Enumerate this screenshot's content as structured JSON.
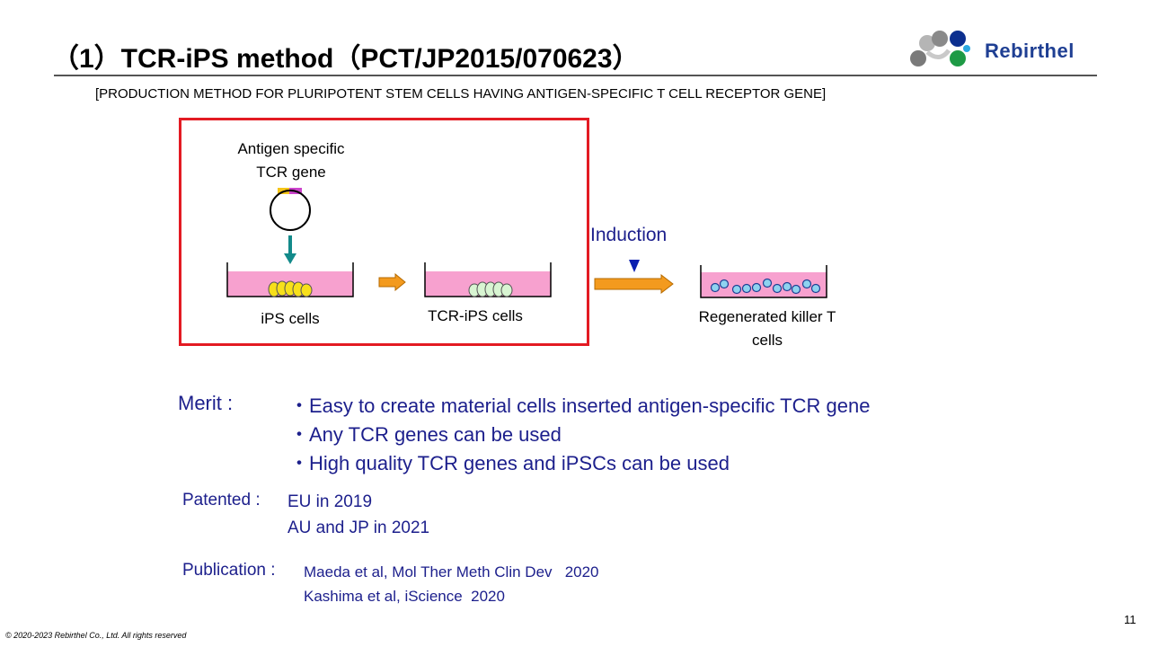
{
  "header": {
    "title": "（1）TCR-iPS method（PCT/JP2015/070623）",
    "subtitle": "[PRODUCTION METHOD FOR PLURIPOTENT STEM CELLS HAVING ANTIGEN-SPECIFIC T CELL RECEPTOR GENE]",
    "brand_name": "Rebirthel"
  },
  "diagram": {
    "antigen_label_line1": "Antigen specific",
    "antigen_label_line2": "TCR gene",
    "ips_label": "iPS cells",
    "tcr_ips_label": "TCR-iPS cells",
    "induction_label": "Induction",
    "killer_label_line1": "Regenerated killer T",
    "killer_label_line2": "cells"
  },
  "merit": {
    "label": "Merit :",
    "items": [
      "・Easy to create material cells inserted antigen-specific TCR gene",
      "・Any TCR genes can be used",
      "・High quality TCR genes and iPSCs can be used"
    ]
  },
  "patented": {
    "label": "Patented :",
    "items": [
      "EU in 2019",
      "AU and JP in 2021"
    ]
  },
  "publication": {
    "label": "Publication :",
    "items": [
      "Maeda et al, Mol Ther Meth Clin Dev   2020",
      "Kashima et al, iScience  2020"
    ]
  },
  "footer": {
    "page_number": "11",
    "copyright": "© 2020-2023 Rebirthel Co., Ltd. All rights reserved"
  },
  "colors": {
    "text_blue": "#1c1f8c",
    "brand_blue": "#1f3f93",
    "highlight_box": "#e31b23",
    "dish_medium": "#f7a1cf",
    "arrow_orange": "#f39a1e",
    "teal_arrow": "#138a8a"
  }
}
